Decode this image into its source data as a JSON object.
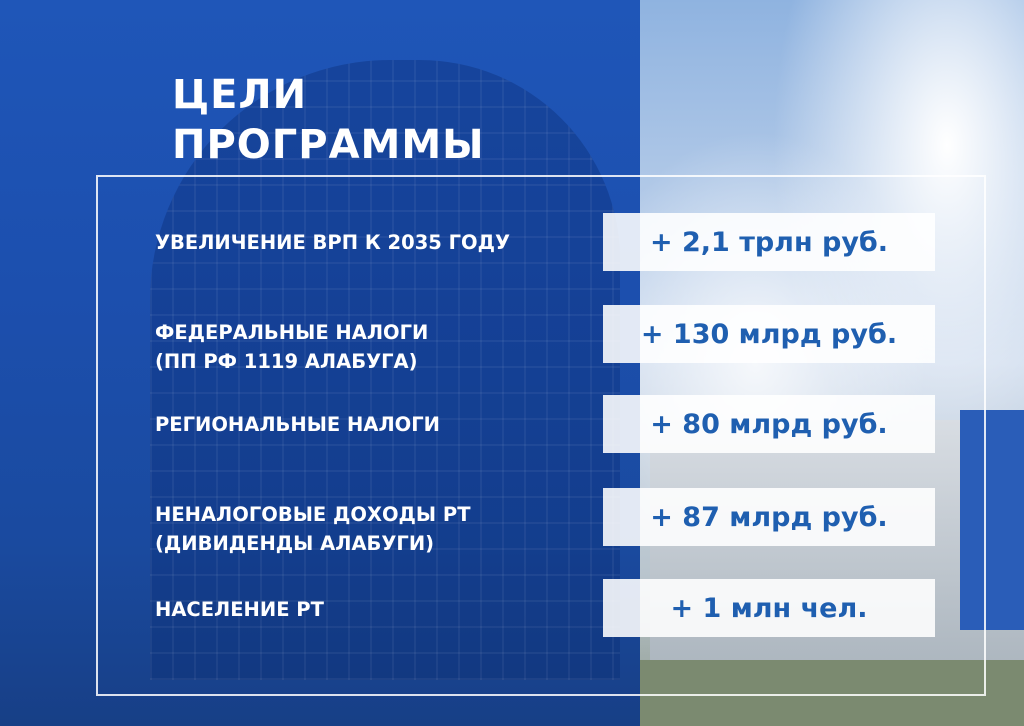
{
  "title_lines": [
    "ЦЕЛИ",
    "ПРОГРАММЫ"
  ],
  "goals": [
    {
      "label": [
        "УВЕЛИЧЕНИЕ ВРП К 2035 ГОДУ"
      ],
      "value": "+ 2,1 трлн руб."
    },
    {
      "label": [
        "ФЕДЕРАЛЬНЫЕ НАЛОГИ",
        "(ПП РФ 1119 АЛАБУГА)"
      ],
      "value": "+ 130 млрд руб."
    },
    {
      "label": [
        "РЕГИОНАЛЬНЫЕ НАЛОГИ"
      ],
      "value": "+ 80 млрд руб."
    },
    {
      "label": [
        "НЕНАЛОГОВЫЕ ДОХОДЫ РТ",
        "(ДИВИДЕНДЫ АЛАБУГИ)"
      ],
      "value": "+ 87 млрд руб."
    },
    {
      "label": [
        "НАСЕЛЕНИЕ РТ"
      ],
      "value": "+ 1 млн чел."
    }
  ],
  "colors": {
    "panel_blue": "#1f56b8",
    "value_text": "#1f5fb0"
  }
}
